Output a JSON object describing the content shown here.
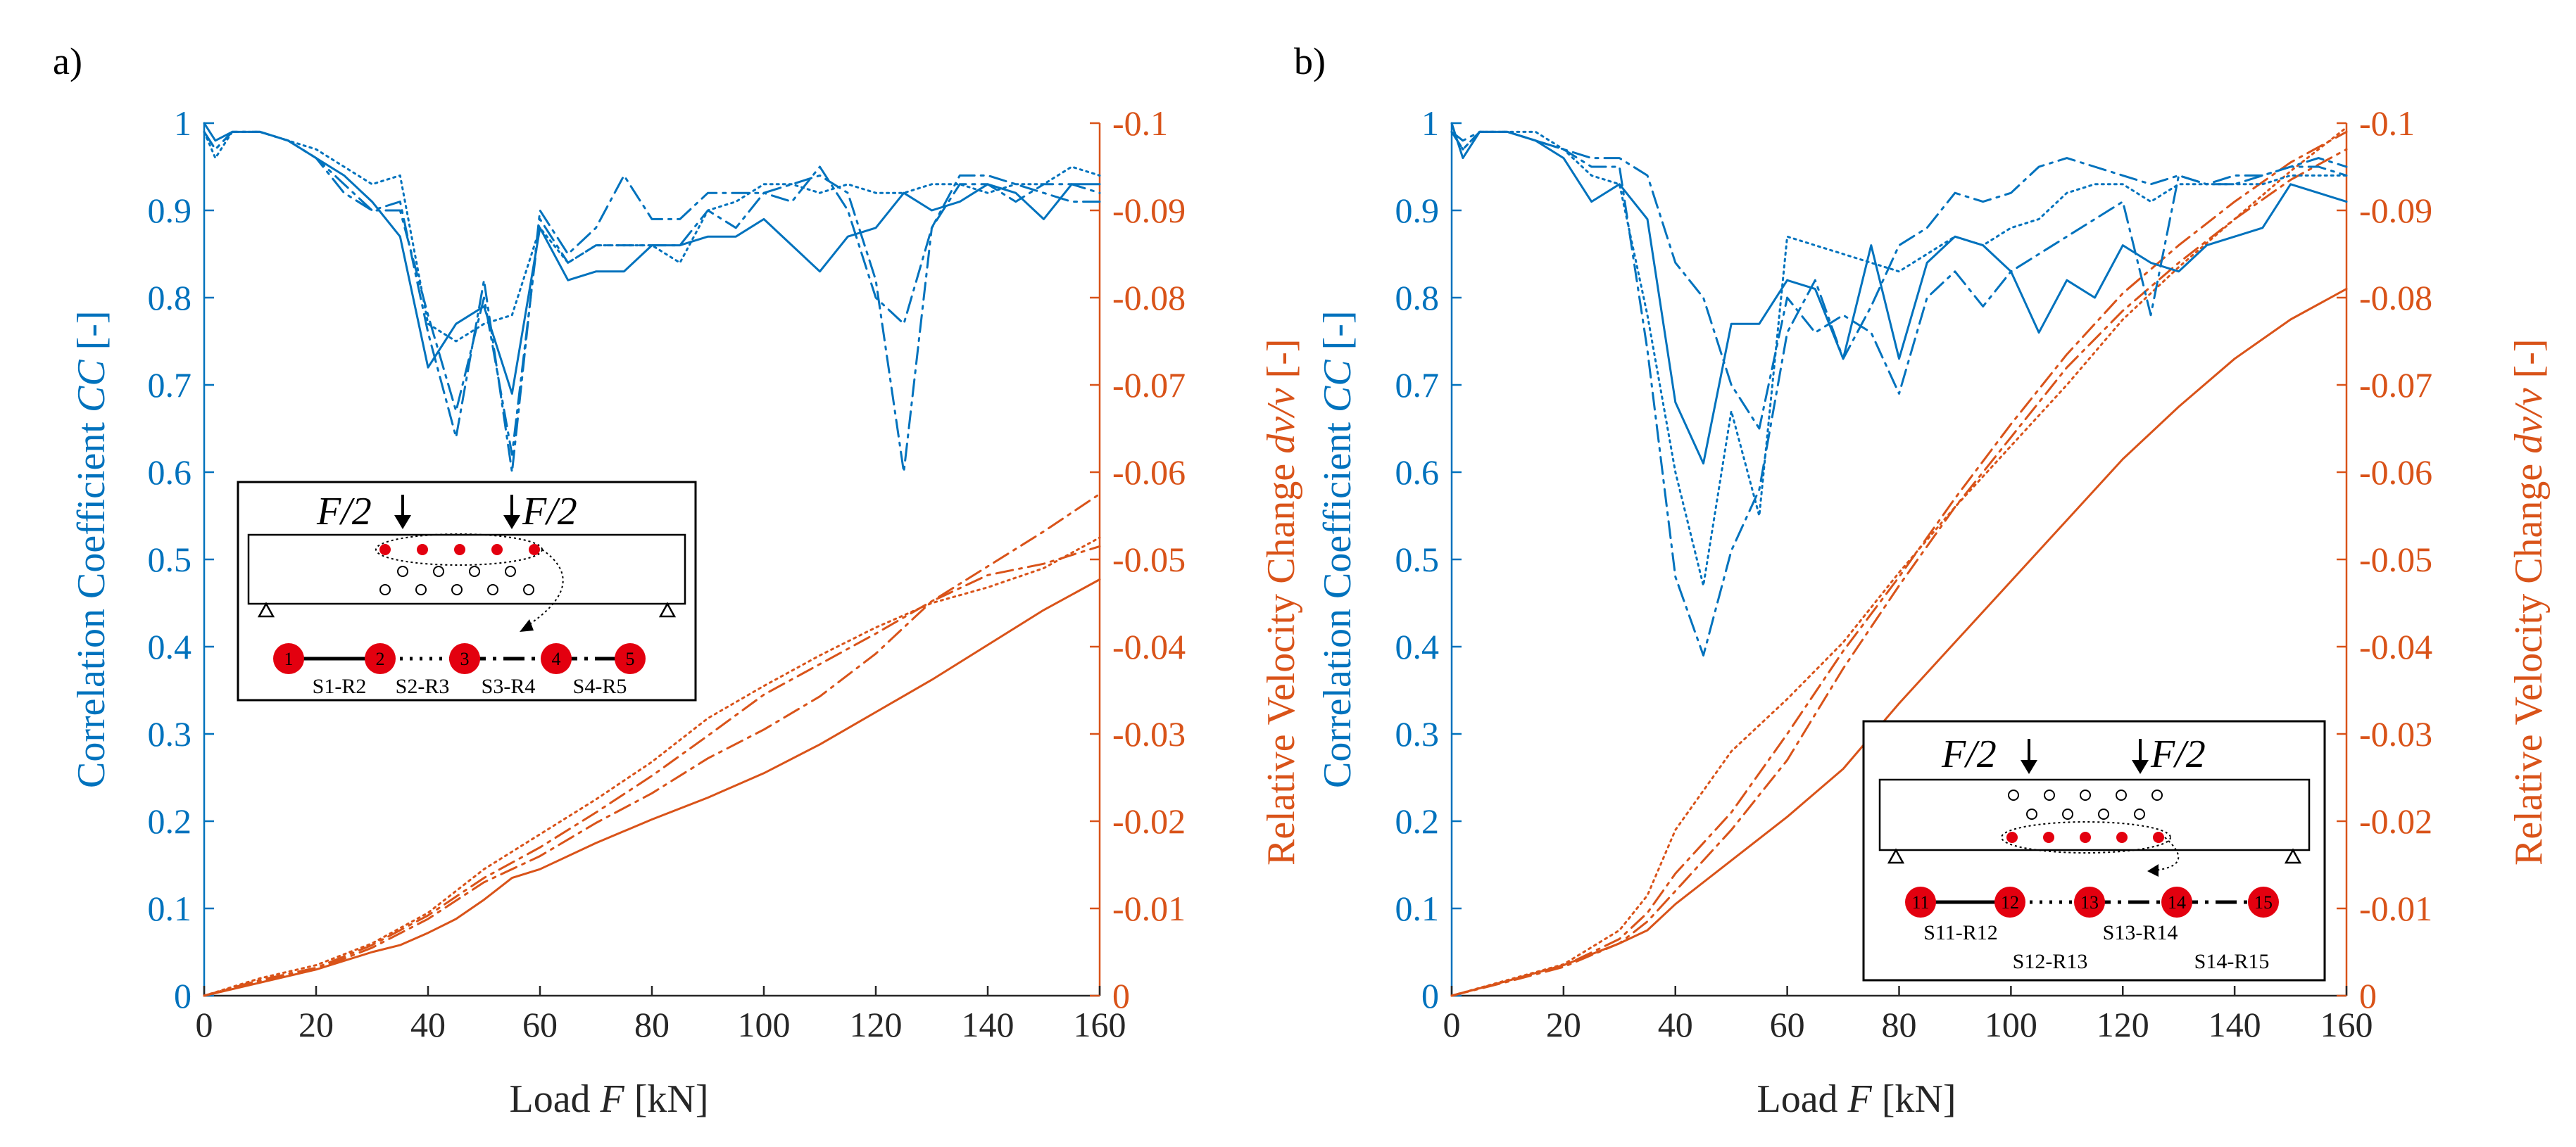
{
  "chart_data": [
    {
      "type": "line",
      "panel": "a)",
      "xlabel": "Load F [kN]",
      "ylabel_left": "Correlation Coefficient CC [-]",
      "ylabel_right": "Relative Velocity Change dv/v [-]",
      "xlim": [
        0,
        160
      ],
      "ylim_left": [
        0,
        1
      ],
      "ylim_right": [
        0,
        -0.1
      ],
      "x_ticks": [
        "0",
        "20",
        "40",
        "60",
        "80",
        "100",
        "120",
        "140",
        "160"
      ],
      "y_left_ticks": [
        "0",
        "0.1",
        "0.2",
        "0.3",
        "0.4",
        "0.5",
        "0.6",
        "0.7",
        "0.8",
        "0.9",
        "1"
      ],
      "y_right_ticks": [
        "0",
        "-0.01",
        "-0.02",
        "-0.03",
        "-0.04",
        "-0.05",
        "-0.06",
        "-0.07",
        "-0.08",
        "-0.09",
        "-0.1"
      ],
      "colors": {
        "cc": "#0072BD",
        "dvv": "#D95319",
        "axis": "#262626"
      },
      "cc_series": [
        {
          "name": "S1-R2",
          "style": "solid",
          "x": [
            0,
            2,
            5,
            10,
            15,
            20,
            25,
            30,
            35,
            40,
            45,
            50,
            55,
            60,
            65,
            70,
            75,
            80,
            85,
            90,
            95,
            100,
            105,
            110,
            115,
            120,
            125,
            130,
            135,
            140,
            145,
            150,
            155,
            160
          ],
          "values": [
            1.0,
            0.98,
            0.99,
            0.99,
            0.98,
            0.96,
            0.94,
            0.91,
            0.87,
            0.72,
            0.77,
            0.79,
            0.69,
            0.88,
            0.82,
            0.83,
            0.83,
            0.86,
            0.86,
            0.87,
            0.87,
            0.89,
            0.86,
            0.83,
            0.87,
            0.88,
            0.92,
            0.9,
            0.91,
            0.93,
            0.92,
            0.89,
            0.93,
            0.93
          ]
        },
        {
          "name": "S2-R3",
          "style": "dotted",
          "x": [
            0,
            2,
            5,
            10,
            15,
            20,
            25,
            30,
            35,
            40,
            45,
            50,
            55,
            60,
            65,
            70,
            75,
            80,
            85,
            90,
            95,
            100,
            105,
            110,
            115,
            120,
            125,
            130,
            135,
            140,
            145,
            150,
            155,
            160
          ],
          "values": [
            0.99,
            0.96,
            0.99,
            0.99,
            0.98,
            0.97,
            0.95,
            0.93,
            0.94,
            0.77,
            0.75,
            0.77,
            0.78,
            0.88,
            0.84,
            0.86,
            0.86,
            0.86,
            0.84,
            0.9,
            0.91,
            0.93,
            0.93,
            0.92,
            0.93,
            0.92,
            0.92,
            0.93,
            0.93,
            0.92,
            0.93,
            0.93,
            0.95,
            0.94
          ]
        },
        {
          "name": "S3-R4",
          "style": "dashdot",
          "x": [
            0,
            2,
            5,
            10,
            15,
            20,
            25,
            30,
            35,
            40,
            45,
            50,
            55,
            60,
            65,
            70,
            75,
            80,
            85,
            90,
            95,
            100,
            105,
            110,
            115,
            120,
            125,
            130,
            135,
            140,
            145,
            150,
            155,
            160
          ],
          "values": [
            0.99,
            0.97,
            0.99,
            0.99,
            0.98,
            0.96,
            0.93,
            0.9,
            0.91,
            0.76,
            0.64,
            0.82,
            0.6,
            0.9,
            0.85,
            0.88,
            0.94,
            0.89,
            0.89,
            0.92,
            0.92,
            0.92,
            0.93,
            0.94,
            0.92,
            0.82,
            0.6,
            0.88,
            0.94,
            0.94,
            0.93,
            0.92,
            0.91,
            0.91
          ]
        },
        {
          "name": "S4-R5",
          "style": "dashdot",
          "x": [
            0,
            2,
            5,
            10,
            15,
            20,
            25,
            30,
            35,
            40,
            45,
            50,
            55,
            60,
            65,
            70,
            75,
            80,
            85,
            90,
            95,
            100,
            105,
            110,
            115,
            120,
            125,
            130,
            135,
            140,
            145,
            150,
            155,
            160
          ],
          "values": [
            0.99,
            0.97,
            0.99,
            0.99,
            0.98,
            0.96,
            0.92,
            0.9,
            0.9,
            0.78,
            0.67,
            0.8,
            0.62,
            0.89,
            0.84,
            0.86,
            0.86,
            0.86,
            0.86,
            0.9,
            0.88,
            0.92,
            0.91,
            0.95,
            0.9,
            0.8,
            0.77,
            0.88,
            0.93,
            0.93,
            0.91,
            0.93,
            0.93,
            0.92
          ]
        }
      ],
      "dvv_series": [
        {
          "name": "S1-R2",
          "style": "solid",
          "x": [
            0,
            10,
            20,
            30,
            35,
            40,
            45,
            50,
            55,
            60,
            70,
            80,
            90,
            100,
            110,
            120,
            130,
            140,
            150,
            160
          ],
          "values": [
            0,
            -0.0015,
            -0.003,
            -0.005,
            -0.0058,
            -0.0072,
            -0.0088,
            -0.011,
            -0.0135,
            -0.0145,
            -0.0175,
            -0.0202,
            -0.0227,
            -0.0255,
            -0.0288,
            -0.0325,
            -0.0362,
            -0.0402,
            -0.0442,
            -0.0477
          ]
        },
        {
          "name": "S2-R3",
          "style": "dotted",
          "x": [
            0,
            10,
            20,
            30,
            40,
            50,
            60,
            70,
            80,
            90,
            100,
            110,
            120,
            130,
            140,
            150,
            160
          ],
          "values": [
            0,
            -0.002,
            -0.0035,
            -0.006,
            -0.0095,
            -0.0145,
            -0.0185,
            -0.0225,
            -0.0268,
            -0.0318,
            -0.0355,
            -0.039,
            -0.0422,
            -0.045,
            -0.0468,
            -0.049,
            -0.0525
          ]
        },
        {
          "name": "S3-R4",
          "style": "dashdot",
          "x": [
            0,
            10,
            20,
            30,
            40,
            50,
            60,
            70,
            80,
            90,
            100,
            110,
            120,
            130,
            140,
            150,
            160
          ],
          "values": [
            0,
            -0.0018,
            -0.0032,
            -0.0058,
            -0.0092,
            -0.0135,
            -0.017,
            -0.021,
            -0.0252,
            -0.0298,
            -0.0345,
            -0.038,
            -0.0415,
            -0.0452,
            -0.0492,
            -0.0532,
            -0.0575
          ]
        },
        {
          "name": "S4-R5",
          "style": "dashdot",
          "x": [
            0,
            10,
            20,
            30,
            40,
            50,
            60,
            70,
            80,
            90,
            100,
            110,
            120,
            130,
            140,
            150,
            160
          ],
          "values": [
            0,
            -0.0017,
            -0.003,
            -0.0055,
            -0.0088,
            -0.013,
            -0.016,
            -0.0198,
            -0.0232,
            -0.0272,
            -0.0305,
            -0.0343,
            -0.0392,
            -0.0452,
            -0.0482,
            -0.0495,
            -0.0515
          ]
        }
      ],
      "inset": {
        "loads": [
          "F/2",
          "F/2"
        ],
        "sensors": [
          "1",
          "2",
          "3",
          "4",
          "5"
        ],
        "pairs": [
          "S1-R2",
          "S2-R3",
          "S3-R4",
          "S4-R5"
        ]
      }
    },
    {
      "type": "line",
      "panel": "b)",
      "xlabel": "Load F [kN]",
      "ylabel_left": "Correlation Coefficient CC [-]",
      "ylabel_right": "Relative Velocity Change dv/v [-]",
      "xlim": [
        0,
        160
      ],
      "ylim_left": [
        0,
        1
      ],
      "ylim_right": [
        0,
        -0.1
      ],
      "x_ticks": [
        "0",
        "20",
        "40",
        "60",
        "80",
        "100",
        "120",
        "140",
        "160"
      ],
      "y_left_ticks": [
        "0",
        "0.1",
        "0.2",
        "0.3",
        "0.4",
        "0.5",
        "0.6",
        "0.7",
        "0.8",
        "0.9",
        "1"
      ],
      "y_right_ticks": [
        "0",
        "-0.01",
        "-0.02",
        "-0.03",
        "-0.04",
        "-0.05",
        "-0.06",
        "-0.07",
        "-0.08",
        "-0.09",
        "-0.1"
      ],
      "colors": {
        "cc": "#0072BD",
        "dvv": "#D95319",
        "axis": "#262626"
      },
      "cc_series": [
        {
          "name": "S11-R12",
          "style": "solid",
          "x": [
            0,
            2,
            5,
            10,
            15,
            20,
            25,
            30,
            35,
            40,
            45,
            50,
            55,
            60,
            65,
            70,
            75,
            80,
            85,
            90,
            95,
            100,
            105,
            110,
            115,
            120,
            125,
            130,
            135,
            140,
            145,
            150,
            155,
            160
          ],
          "values": [
            1.0,
            0.96,
            0.99,
            0.99,
            0.98,
            0.96,
            0.91,
            0.93,
            0.89,
            0.68,
            0.61,
            0.77,
            0.77,
            0.82,
            0.81,
            0.73,
            0.86,
            0.73,
            0.84,
            0.87,
            0.86,
            0.83,
            0.76,
            0.82,
            0.8,
            0.86,
            0.84,
            0.83,
            0.86,
            0.87,
            0.88,
            0.93,
            0.92,
            0.91
          ]
        },
        {
          "name": "S12-R13",
          "style": "dotted",
          "x": [
            0,
            2,
            5,
            10,
            15,
            20,
            25,
            30,
            35,
            40,
            45,
            50,
            55,
            60,
            65,
            70,
            75,
            80,
            85,
            90,
            95,
            100,
            105,
            110,
            115,
            120,
            125,
            130,
            135,
            140,
            145,
            150,
            155,
            160
          ],
          "values": [
            0.99,
            0.97,
            0.99,
            0.99,
            0.99,
            0.97,
            0.94,
            0.93,
            0.78,
            0.6,
            0.47,
            0.67,
            0.55,
            0.87,
            0.86,
            0.85,
            0.84,
            0.83,
            0.85,
            0.87,
            0.86,
            0.88,
            0.89,
            0.92,
            0.93,
            0.93,
            0.91,
            0.93,
            0.93,
            0.93,
            0.93,
            0.94,
            0.94,
            0.94
          ]
        },
        {
          "name": "S13-R14",
          "style": "dashdot",
          "x": [
            0,
            2,
            5,
            10,
            15,
            20,
            25,
            30,
            35,
            40,
            45,
            50,
            55,
            60,
            65,
            70,
            75,
            80,
            85,
            90,
            95,
            100,
            105,
            110,
            115,
            120,
            125,
            130,
            135,
            140,
            145,
            150,
            155,
            160
          ],
          "values": [
            0.99,
            0.98,
            0.99,
            0.99,
            0.98,
            0.97,
            0.96,
            0.96,
            0.94,
            0.84,
            0.8,
            0.7,
            0.65,
            0.8,
            0.76,
            0.78,
            0.76,
            0.69,
            0.8,
            0.83,
            0.79,
            0.83,
            0.85,
            0.87,
            0.89,
            0.91,
            0.78,
            0.94,
            0.93,
            0.94,
            0.94,
            0.95,
            0.95,
            0.94
          ]
        },
        {
          "name": "S14-R15",
          "style": "dashdot",
          "x": [
            0,
            2,
            5,
            10,
            15,
            20,
            25,
            30,
            35,
            40,
            45,
            50,
            55,
            60,
            65,
            70,
            75,
            80,
            85,
            90,
            95,
            100,
            105,
            110,
            115,
            120,
            125,
            130,
            135,
            140,
            145,
            150,
            155,
            160
          ],
          "values": [
            0.99,
            0.97,
            0.99,
            0.99,
            0.98,
            0.97,
            0.95,
            0.95,
            0.74,
            0.48,
            0.39,
            0.51,
            0.58,
            0.76,
            0.82,
            0.73,
            0.79,
            0.86,
            0.88,
            0.92,
            0.91,
            0.92,
            0.95,
            0.96,
            0.95,
            0.94,
            0.93,
            0.94,
            0.93,
            0.93,
            0.94,
            0.95,
            0.96,
            0.95
          ]
        }
      ],
      "dvv_series": [
        {
          "name": "S11-R12",
          "style": "solid",
          "x": [
            0,
            10,
            20,
            30,
            35,
            40,
            50,
            60,
            70,
            80,
            90,
            100,
            110,
            120,
            130,
            140,
            150,
            160
          ],
          "values": [
            0,
            -0.0017,
            -0.0035,
            -0.006,
            -0.0075,
            -0.0105,
            -0.0155,
            -0.0205,
            -0.026,
            -0.0335,
            -0.0405,
            -0.0475,
            -0.0545,
            -0.0615,
            -0.0675,
            -0.073,
            -0.0775,
            -0.081
          ]
        },
        {
          "name": "S12-R13",
          "style": "dotted",
          "x": [
            0,
            10,
            20,
            30,
            35,
            40,
            50,
            60,
            70,
            80,
            90,
            100,
            110,
            120,
            130,
            140,
            150,
            160
          ],
          "values": [
            0,
            -0.0018,
            -0.0036,
            -0.0075,
            -0.0115,
            -0.019,
            -0.028,
            -0.034,
            -0.0405,
            -0.0485,
            -0.056,
            -0.063,
            -0.07,
            -0.0775,
            -0.0835,
            -0.089,
            -0.0945,
            -0.0995
          ]
        },
        {
          "name": "S13-R14",
          "style": "dashdot",
          "x": [
            0,
            10,
            20,
            30,
            35,
            40,
            50,
            60,
            70,
            80,
            90,
            100,
            110,
            120,
            130,
            140,
            150,
            160
          ],
          "values": [
            0,
            -0.0016,
            -0.0033,
            -0.006,
            -0.0085,
            -0.012,
            -0.019,
            -0.027,
            -0.0375,
            -0.047,
            -0.056,
            -0.064,
            -0.072,
            -0.0785,
            -0.084,
            -0.089,
            -0.0935,
            -0.097
          ]
        },
        {
          "name": "S14-R15",
          "style": "dashdot",
          "x": [
            0,
            10,
            20,
            30,
            35,
            40,
            50,
            60,
            70,
            80,
            90,
            100,
            110,
            120,
            130,
            140,
            150,
            160
          ],
          "values": [
            0,
            -0.0017,
            -0.0034,
            -0.0065,
            -0.0095,
            -0.014,
            -0.021,
            -0.03,
            -0.0395,
            -0.048,
            -0.057,
            -0.0655,
            -0.0735,
            -0.0805,
            -0.086,
            -0.091,
            -0.0955,
            -0.099
          ]
        }
      ],
      "inset": {
        "loads": [
          "F/2",
          "F/2"
        ],
        "sensors": [
          "11",
          "12",
          "13",
          "14",
          "15"
        ],
        "pairs_top": [
          "S11-R12",
          "S13-R14"
        ],
        "pairs_bottom": [
          "S12-R13",
          "S14-R15"
        ]
      }
    }
  ]
}
